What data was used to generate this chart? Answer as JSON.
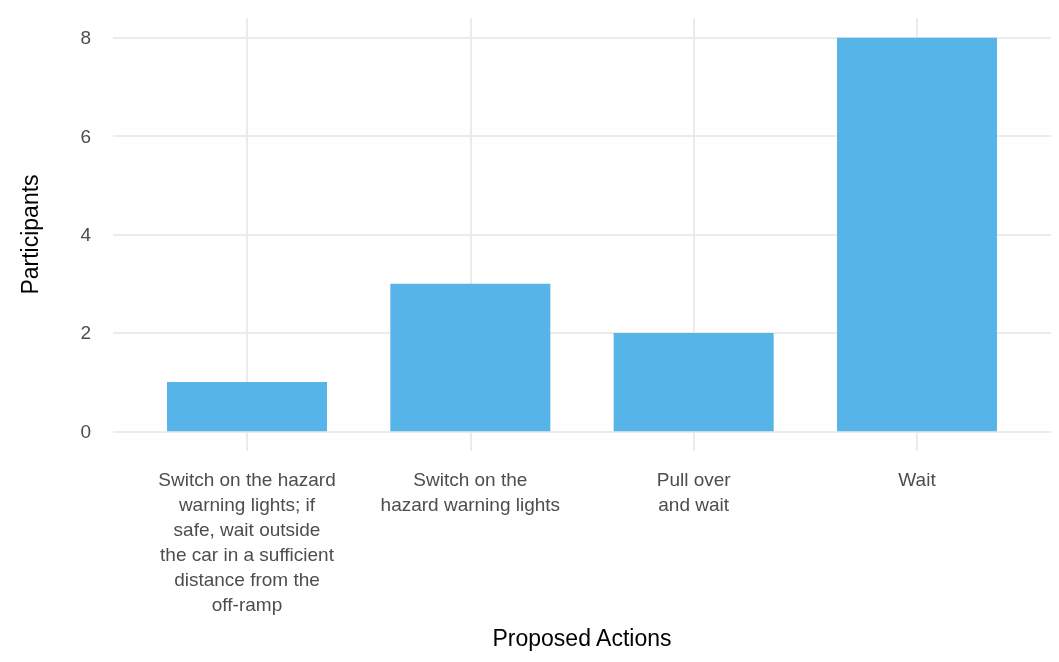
{
  "chart_data": {
    "type": "bar",
    "xlabel": "Proposed Actions",
    "ylabel": "Participants",
    "categories": [
      "Switch on the hazard\nwarning lights; if\nsafe, wait outside\nthe car in a sufficient\ndistance from the\noff-ramp",
      "Switch on the\nhazard warning lights",
      "Pull over\nand wait",
      "Wait"
    ],
    "values": [
      1,
      3,
      2,
      8
    ],
    "color": "#56b4e9",
    "ylim": [
      -0.4,
      8.4
    ],
    "yticks": [
      0,
      2,
      4,
      6,
      8
    ],
    "grid": true
  }
}
